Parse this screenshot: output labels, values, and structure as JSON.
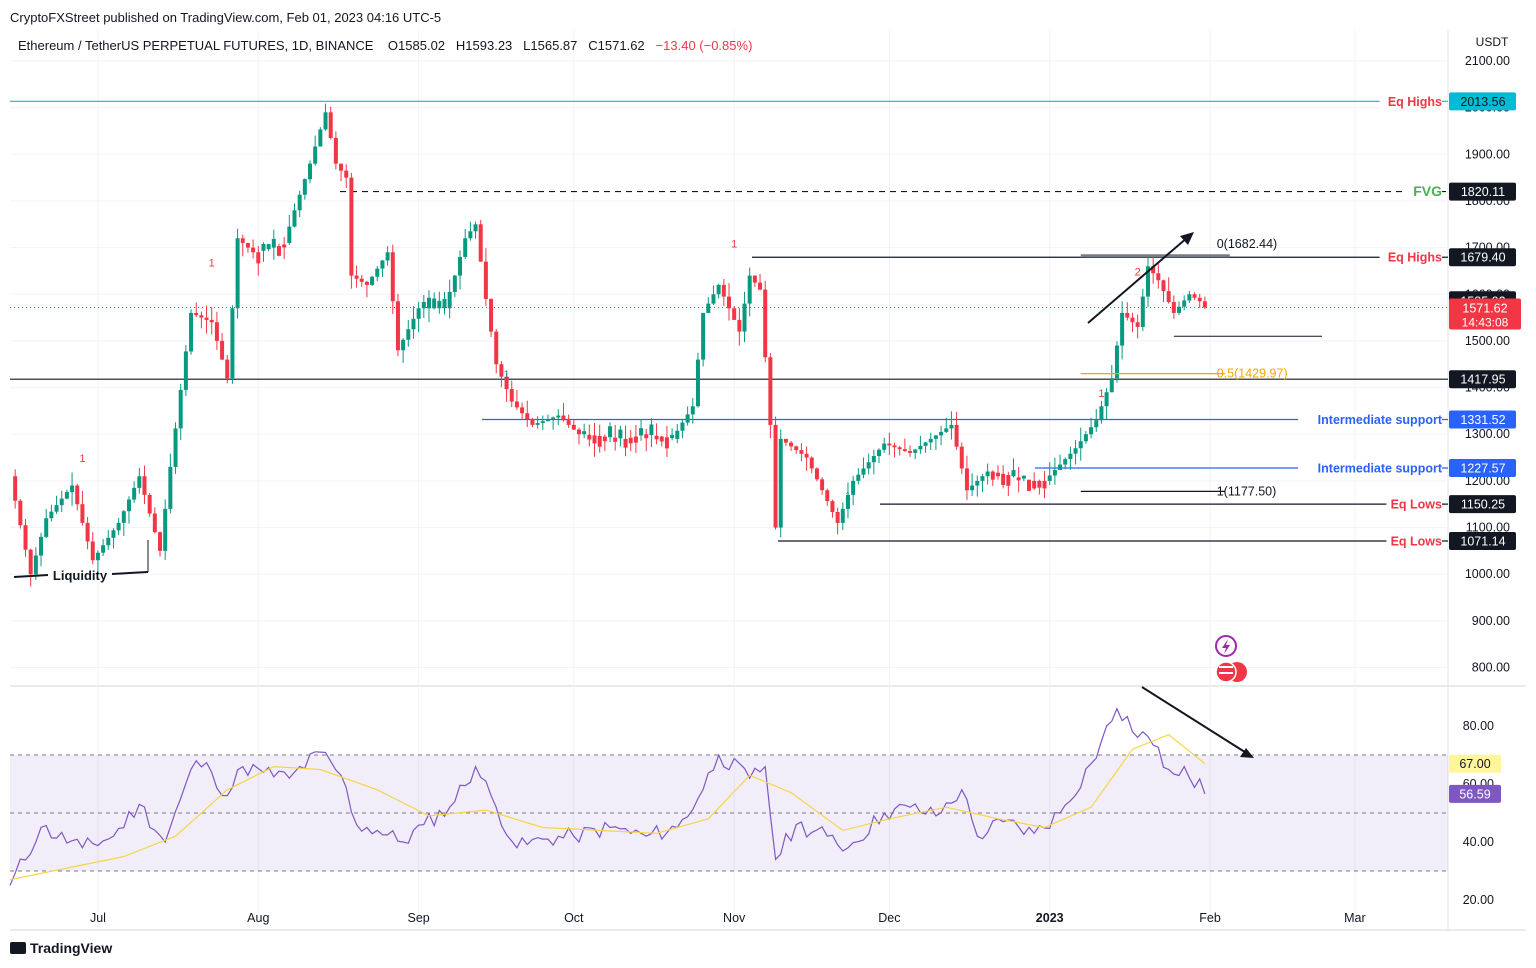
{
  "header": {
    "publisher": "CryptoFXStreet published on TradingView.com, Feb 01, 2023 04:16 UTC-5",
    "symbol": "Ethereum / TetherUS PERPETUAL FUTURES, 1D, BINANCE",
    "open": "O1585.02",
    "high": "H1593.23",
    "low": "L1565.87",
    "close": "C1571.62",
    "change": "−13.40 (−0.85%)"
  },
  "branding": {
    "logo_text": "TradingView"
  },
  "colors": {
    "up": "#089981",
    "down": "#f23645",
    "eq": "#f23645",
    "fvg": "#4caf50",
    "support": "#2962ff",
    "cyan": "#00bcd4",
    "rsi": "#7e57c2",
    "rsi_ma": "#f5d547",
    "fib": "#f7a600"
  },
  "chart_data": [
    {
      "type": "candlestick",
      "title": "Ethereum / TetherUS PERPETUAL FUTURES, 1D, BINANCE",
      "y_unit": "USDT",
      "ylim": [
        760,
        2150
      ],
      "y_ticks": [
        "2100.00",
        "2000.00",
        "1900.00",
        "1800.00",
        "1700.00",
        "1600.00",
        "1500.00",
        "1400.00",
        "1300.00",
        "1200.00",
        "1100.00",
        "1000.00",
        "900.00",
        "800.00"
      ],
      "x_ticks": [
        "Jul",
        "Aug",
        "Sep",
        "Oct",
        "Nov",
        "Dec",
        "2023",
        "Feb",
        "Mar"
      ],
      "x_tick_dates": [
        "2022-07-01",
        "2022-08-01",
        "2022-09-01",
        "2022-10-01",
        "2022-11-01",
        "2022-12-01",
        "2023-01-01",
        "2023-02-01",
        "2023-03-01"
      ],
      "x_range": [
        "2022-06-14",
        "2023-03-19"
      ],
      "close_path": [
        [
          "2022-06-14",
          1210
        ],
        [
          "2022-06-18",
          1000
        ],
        [
          "2022-06-21",
          1120
        ],
        [
          "2022-06-26",
          1190
        ],
        [
          "2022-06-30",
          1030
        ],
        [
          "2022-07-05",
          1110
        ],
        [
          "2022-07-09",
          1210
        ],
        [
          "2022-07-13",
          1050
        ],
        [
          "2022-07-15",
          1230
        ],
        [
          "2022-07-19",
          1560
        ],
        [
          "2022-07-23",
          1540
        ],
        [
          "2022-07-26",
          1420
        ],
        [
          "2022-07-28",
          1720
        ],
        [
          "2022-07-31",
          1690
        ],
        [
          "2022-08-06",
          1710
        ],
        [
          "2022-08-08",
          1780
        ],
        [
          "2022-08-11",
          1880
        ],
        [
          "2022-08-14",
          1990
        ],
        [
          "2022-08-16",
          1880
        ],
        [
          "2022-08-18",
          1850
        ],
        [
          "2022-08-19",
          1640
        ],
        [
          "2022-08-22",
          1620
        ],
        [
          "2022-08-26",
          1690
        ],
        [
          "2022-08-28",
          1480
        ],
        [
          "2022-09-01",
          1570
        ],
        [
          "2022-09-06",
          1570
        ],
        [
          "2022-09-08",
          1640
        ],
        [
          "2022-09-10",
          1720
        ],
        [
          "2022-09-12",
          1750
        ],
        [
          "2022-09-14",
          1590
        ],
        [
          "2022-09-16",
          1450
        ],
        [
          "2022-09-19",
          1370
        ],
        [
          "2022-09-23",
          1320
        ],
        [
          "2022-09-28",
          1340
        ],
        [
          "2022-10-02",
          1300
        ],
        [
          "2022-10-10",
          1290
        ],
        [
          "2022-10-14",
          1300
        ],
        [
          "2022-10-20",
          1290
        ],
        [
          "2022-10-24",
          1360
        ],
        [
          "2022-10-26",
          1560
        ],
        [
          "2022-10-29",
          1620
        ],
        [
          "2022-11-02",
          1520
        ],
        [
          "2022-11-04",
          1640
        ],
        [
          "2022-11-06",
          1610
        ],
        [
          "2022-11-08",
          1320
        ],
        [
          "2022-11-09",
          1100
        ],
        [
          "2022-11-10",
          1290
        ],
        [
          "2022-11-15",
          1250
        ],
        [
          "2022-11-21",
          1110
        ],
        [
          "2022-11-24",
          1200
        ],
        [
          "2022-11-30",
          1280
        ],
        [
          "2022-12-05",
          1260
        ],
        [
          "2022-12-13",
          1320
        ],
        [
          "2022-12-16",
          1180
        ],
        [
          "2022-12-20",
          1220
        ],
        [
          "2022-12-28",
          1200
        ],
        [
          "2022-12-31",
          1200
        ],
        [
          "2023-01-06",
          1270
        ],
        [
          "2023-01-10",
          1330
        ],
        [
          "2023-01-13",
          1420
        ],
        [
          "2023-01-15",
          1560
        ],
        [
          "2023-01-18",
          1530
        ],
        [
          "2023-01-20",
          1660
        ],
        [
          "2023-01-22",
          1630
        ],
        [
          "2023-01-25",
          1560
        ],
        [
          "2023-01-28",
          1600
        ],
        [
          "2023-01-30",
          1585
        ],
        [
          "2023-01-31",
          1571.62
        ]
      ],
      "current_price": 1571.62,
      "previous_close": 1585.02,
      "countdown": "14:43:08",
      "levels": [
        {
          "label": "Eq Highs",
          "value": 2013.56,
          "box": "2013.56",
          "box_color": "cyan"
        },
        {
          "label": "FVG",
          "value": 1820.11,
          "box": "1820.11",
          "box_color": "black"
        },
        {
          "label": "Eq Highs",
          "value": 1679.4,
          "box": "1679.40",
          "box_color": "black"
        },
        {
          "label": "",
          "value": 1417.95,
          "box": "1417.95",
          "box_color": "black"
        },
        {
          "label": "Intermediate support",
          "value": 1331.52,
          "box": "1331.52",
          "box_color": "blue"
        },
        {
          "label": "Intermediate support",
          "value": 1227.57,
          "box": "1227.57",
          "box_color": "blue"
        },
        {
          "label": "Eq Lows",
          "value": 1150.25,
          "box": "1150.25",
          "box_color": "black"
        },
        {
          "label": "Eq Lows",
          "value": 1071.14,
          "box": "1071.14",
          "box_color": "black"
        }
      ],
      "price_boxes": [
        "1585.02",
        "1571.62"
      ],
      "fib_levels": [
        {
          "label": "0(1682.44)",
          "value": 1682.44
        },
        {
          "label": "0.5(1429.97)",
          "value": 1429.97
        },
        {
          "label": "1(1177.50)",
          "value": 1177.5
        }
      ],
      "annotations": [
        "Liquidity"
      ],
      "markers": [
        "1",
        "1",
        "1",
        "1",
        "1",
        "2",
        "1"
      ]
    },
    {
      "type": "line",
      "title": "",
      "ylim": [
        20,
        88
      ],
      "y_ticks": [
        "80.00",
        "60.00",
        "40.00",
        "20.00"
      ],
      "bands": [
        30,
        50,
        70
      ],
      "value_boxes": [
        "67.00",
        "56.59"
      ],
      "series": [
        {
          "name": "",
          "values": [
            [
              "2022-06-14",
              25
            ],
            [
              "2022-06-20",
              45
            ],
            [
              "2022-06-28",
              38
            ],
            [
              "2022-07-04",
              42
            ],
            [
              "2022-07-09",
              53
            ],
            [
              "2022-07-14",
              40
            ],
            [
              "2022-07-17",
              55
            ],
            [
              "2022-07-20",
              68
            ],
            [
              "2022-07-23",
              64
            ],
            [
              "2022-07-26",
              56
            ],
            [
              "2022-07-29",
              66
            ],
            [
              "2022-08-02",
              64
            ],
            [
              "2022-08-07",
              62
            ],
            [
              "2022-08-13",
              71
            ],
            [
              "2022-08-17",
              63
            ],
            [
              "2022-08-20",
              46
            ],
            [
              "2022-08-24",
              44
            ],
            [
              "2022-08-29",
              40
            ],
            [
              "2022-09-02",
              46
            ],
            [
              "2022-09-07",
              52
            ],
            [
              "2022-09-12",
              66
            ],
            [
              "2022-09-16",
              52
            ],
            [
              "2022-09-20",
              38
            ],
            [
              "2022-09-25",
              41
            ],
            [
              "2022-10-01",
              42
            ],
            [
              "2022-10-08",
              45
            ],
            [
              "2022-10-15",
              42
            ],
            [
              "2022-10-21",
              45
            ],
            [
              "2022-10-25",
              55
            ],
            [
              "2022-10-29",
              70
            ],
            [
              "2022-11-04",
              62
            ],
            [
              "2022-11-07",
              66
            ],
            [
              "2022-11-09",
              34
            ],
            [
              "2022-11-13",
              46
            ],
            [
              "2022-11-19",
              42
            ],
            [
              "2022-11-23",
              38
            ],
            [
              "2022-11-30",
              50
            ],
            [
              "2022-12-05",
              52
            ],
            [
              "2022-12-10",
              49
            ],
            [
              "2022-12-15",
              58
            ],
            [
              "2022-12-18",
              42
            ],
            [
              "2022-12-23",
              47
            ],
            [
              "2022-12-29",
              43
            ],
            [
              "2023-01-03",
              50
            ],
            [
              "2023-01-09",
              67
            ],
            [
              "2023-01-14",
              86
            ],
            [
              "2023-01-17",
              78
            ],
            [
              "2023-01-19",
              78
            ],
            [
              "2023-01-24",
              65
            ],
            [
              "2023-01-27",
              66
            ],
            [
              "2023-01-31",
              56.59
            ]
          ]
        },
        {
          "name": "",
          "values": [
            [
              "2022-06-14",
              27
            ],
            [
              "2022-06-25",
              31
            ],
            [
              "2022-07-06",
              35
            ],
            [
              "2022-07-16",
              42
            ],
            [
              "2022-07-26",
              58
            ],
            [
              "2022-08-04",
              66
            ],
            [
              "2022-08-13",
              65
            ],
            [
              "2022-08-24",
              58
            ],
            [
              "2022-09-03",
              49
            ],
            [
              "2022-09-14",
              51
            ],
            [
              "2022-09-25",
              45
            ],
            [
              "2022-10-06",
              44
            ],
            [
              "2022-10-17",
              43
            ],
            [
              "2022-10-27",
              48
            ],
            [
              "2022-11-04",
              63
            ],
            [
              "2022-11-12",
              57
            ],
            [
              "2022-11-22",
              44
            ],
            [
              "2022-12-01",
              48
            ],
            [
              "2022-12-12",
              52
            ],
            [
              "2022-12-22",
              48
            ],
            [
              "2022-12-31",
              45
            ],
            [
              "2023-01-09",
              52
            ],
            [
              "2023-01-17",
              72
            ],
            [
              "2023-01-24",
              77
            ],
            [
              "2023-01-31",
              67
            ]
          ]
        }
      ]
    }
  ]
}
